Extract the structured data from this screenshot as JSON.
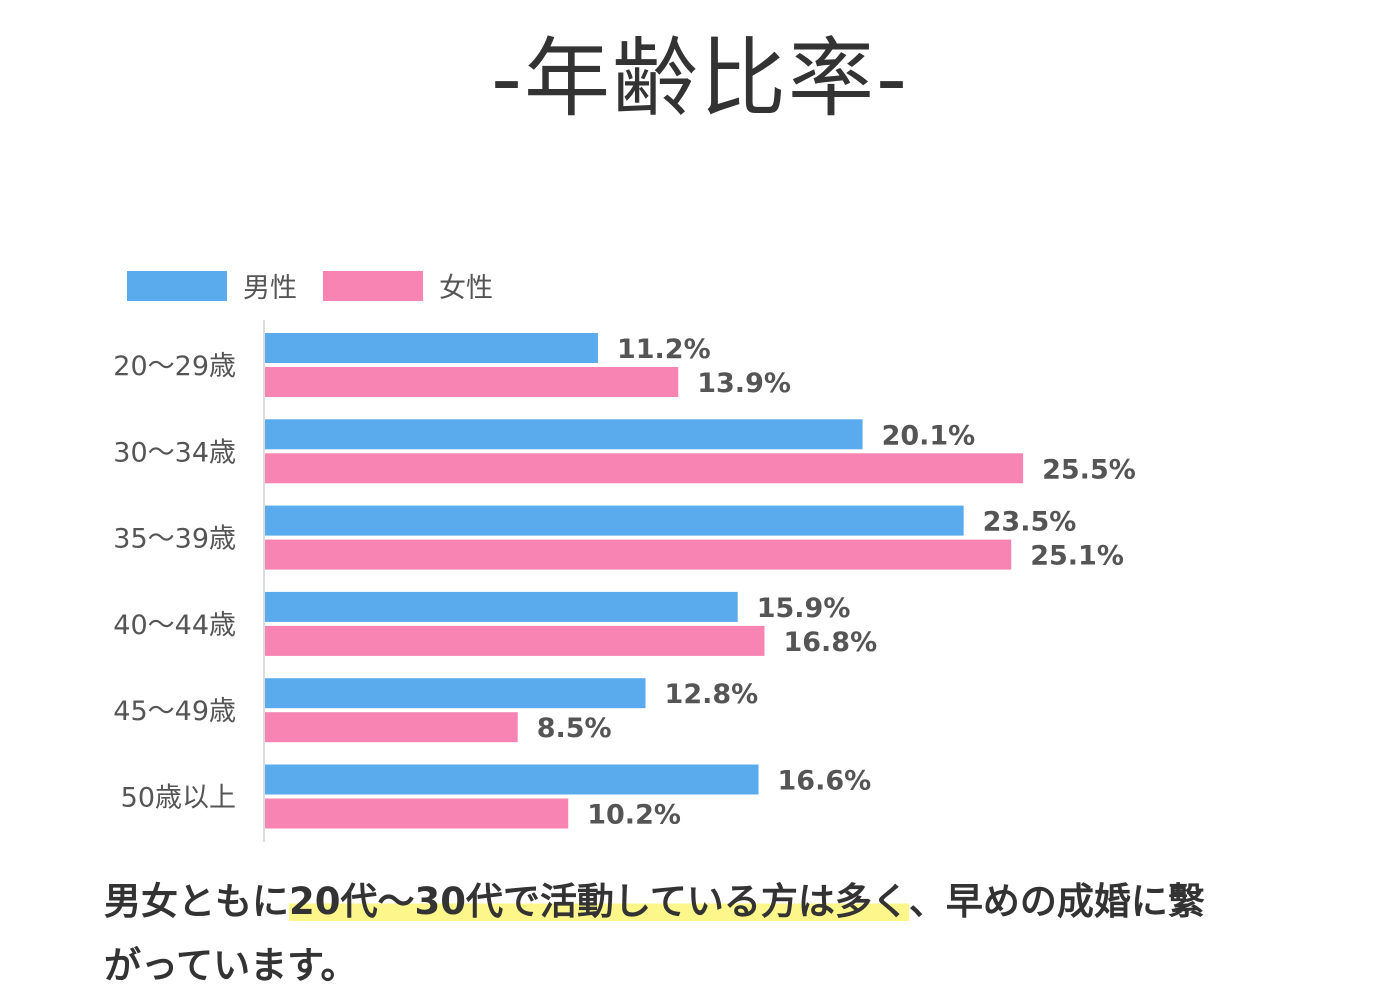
{
  "title": "-年齢比率-",
  "chart_data": {
    "type": "bar",
    "orientation": "horizontal",
    "categories": [
      "20〜29歳",
      "30〜34歳",
      "35〜39歳",
      "40〜44歳",
      "45〜49歳",
      "50歳以上"
    ],
    "series": [
      {
        "name": "男性",
        "color": "#5aabee",
        "values": [
          11.2,
          20.1,
          23.5,
          15.9,
          12.8,
          16.6
        ],
        "labels": [
          "11.2%",
          "20.1%",
          "23.5%",
          "15.9%",
          "12.8%",
          "16.6%"
        ]
      },
      {
        "name": "女性",
        "color": "#f784b2",
        "values": [
          13.9,
          25.5,
          25.1,
          16.8,
          8.5,
          10.2
        ],
        "labels": [
          "13.9%",
          "25.5%",
          "25.1%",
          "16.8%",
          "8.5%",
          "10.2%"
        ]
      }
    ],
    "unit": "%",
    "xlim": [
      0,
      30
    ],
    "grid": false,
    "legend": "top-left"
  },
  "caption": {
    "line1_before": "男女ともに",
    "line1_highlight": "20代〜30代で活動している方は多く",
    "line1_after": "、早めの成婚に繫",
    "line2": "がっています。"
  }
}
